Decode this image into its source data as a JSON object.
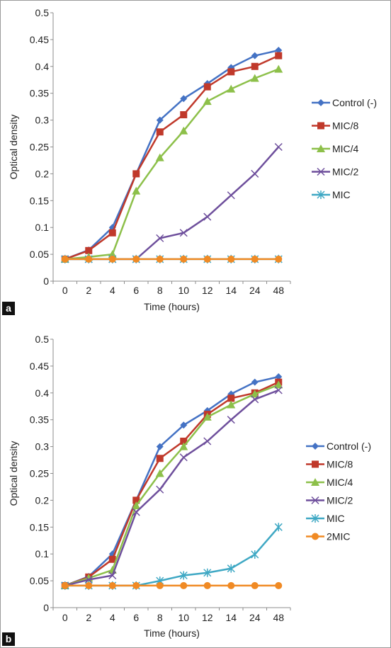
{
  "colors": {
    "Control (-)": "#4472c4",
    "MIC/8": "#c0392b",
    "MIC/4": "#8dc04a",
    "MIC/2": "#6e4f9c",
    "MIC": "#3fa8c4",
    "2MIC": "#f08a24"
  },
  "markers": {
    "Control (-)": "diamond",
    "MIC/8": "square",
    "MIC/4": "triangle",
    "MIC/2": "x",
    "MIC": "star",
    "2MIC": "circle"
  },
  "chart_data": [
    {
      "panel_label": "a",
      "type": "line",
      "xlabel": "Time (hours)",
      "ylabel": "Optical density",
      "ylim": [
        0,
        0.5
      ],
      "yticks": [
        "0",
        "0.05",
        "0.1",
        "0.15",
        "0.2",
        "0.25",
        "0.3",
        "0.35",
        "0.4",
        "0.45",
        "0.5"
      ],
      "categories": [
        "0",
        "2",
        "4",
        "6",
        "8",
        "10",
        "12",
        "14",
        "24",
        "48"
      ],
      "legend_position": "right",
      "series": [
        {
          "name": "Control (-)",
          "values": [
            0.041,
            0.058,
            0.1,
            0.2,
            0.3,
            0.34,
            0.368,
            0.398,
            0.42,
            0.43
          ]
        },
        {
          "name": "MIC/8",
          "values": [
            0.041,
            0.057,
            0.09,
            0.2,
            0.278,
            0.31,
            0.362,
            0.39,
            0.4,
            0.42
          ]
        },
        {
          "name": "MIC/4",
          "values": [
            0.041,
            0.045,
            0.05,
            0.168,
            0.23,
            0.28,
            0.335,
            0.358,
            0.378,
            0.395
          ]
        },
        {
          "name": "MIC/2",
          "values": [
            0.041,
            0.041,
            0.041,
            0.041,
            0.08,
            0.09,
            0.12,
            0.16,
            0.2,
            0.25
          ]
        },
        {
          "name": "MIC",
          "values": [
            0.041,
            0.041,
            0.041,
            0.041,
            0.041,
            0.041,
            0.041,
            0.041,
            0.041,
            0.041
          ]
        },
        {
          "name": "2MIC",
          "legend": false,
          "values": [
            0.041,
            0.041,
            0.041,
            0.041,
            0.041,
            0.041,
            0.041,
            0.041,
            0.041,
            0.041
          ]
        }
      ]
    },
    {
      "panel_label": "b",
      "type": "line",
      "xlabel": "Time (hours)",
      "ylabel": "Optical density",
      "ylim": [
        0,
        0.5
      ],
      "yticks": [
        "0",
        "0.05",
        "0.1",
        "0.15",
        "0.2",
        "0.25",
        "0.3",
        "0.35",
        "0.4",
        "0.45",
        "0.5"
      ],
      "categories": [
        "0",
        "2",
        "4",
        "6",
        "8",
        "10",
        "12",
        "14",
        "24",
        "48"
      ],
      "legend_position": "right",
      "series": [
        {
          "name": "Control (-)",
          "values": [
            0.041,
            0.058,
            0.1,
            0.2,
            0.3,
            0.34,
            0.367,
            0.398,
            0.42,
            0.43
          ]
        },
        {
          "name": "MIC/8",
          "values": [
            0.041,
            0.057,
            0.09,
            0.2,
            0.278,
            0.31,
            0.36,
            0.39,
            0.4,
            0.42
          ]
        },
        {
          "name": "MIC/4",
          "values": [
            0.041,
            0.055,
            0.07,
            0.19,
            0.25,
            0.3,
            0.355,
            0.378,
            0.398,
            0.415
          ]
        },
        {
          "name": "MIC/2",
          "values": [
            0.041,
            0.052,
            0.06,
            0.178,
            0.22,
            0.28,
            0.31,
            0.35,
            0.388,
            0.405
          ]
        },
        {
          "name": "MIC",
          "values": [
            0.041,
            0.041,
            0.041,
            0.041,
            0.05,
            0.06,
            0.065,
            0.073,
            0.099,
            0.15
          ]
        },
        {
          "name": "2MIC",
          "values": [
            0.041,
            0.041,
            0.041,
            0.041,
            0.041,
            0.041,
            0.041,
            0.041,
            0.041,
            0.041
          ]
        }
      ]
    }
  ]
}
